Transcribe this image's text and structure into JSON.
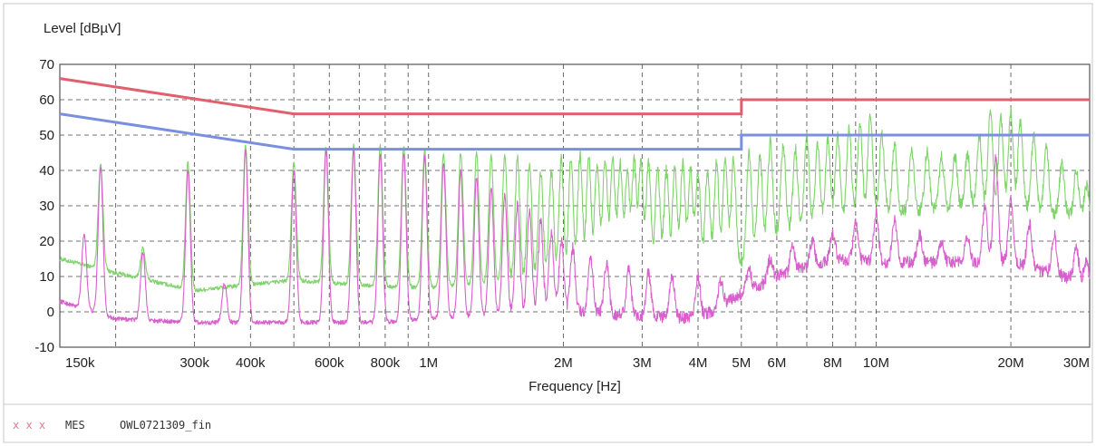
{
  "chart_data": {
    "type": "line",
    "title": "",
    "ylabel": "Level [dBµV]",
    "xlabel": "Frequency [Hz]",
    "x_scale": "log",
    "xlim": [
      150000,
      30000000
    ],
    "ylim": [
      -10,
      70
    ],
    "y_ticks": [
      -10,
      0,
      10,
      20,
      30,
      40,
      50,
      60,
      70
    ],
    "x_ticks": [
      {
        "value": 150000,
        "label": "150k"
      },
      {
        "value": 300000,
        "label": "300k"
      },
      {
        "value": 400000,
        "label": "400k"
      },
      {
        "value": 600000,
        "label": "600k"
      },
      {
        "value": 800000,
        "label": "800k"
      },
      {
        "value": 1000000,
        "label": "1M"
      },
      {
        "value": 2000000,
        "label": "2M"
      },
      {
        "value": 3000000,
        "label": "3M"
      },
      {
        "value": 4000000,
        "label": "4M"
      },
      {
        "value": 5000000,
        "label": "5M"
      },
      {
        "value": 6000000,
        "label": "6M"
      },
      {
        "value": 8000000,
        "label": "8M"
      },
      {
        "value": 10000000,
        "label": "10M"
      },
      {
        "value": 20000000,
        "label": "20M"
      },
      {
        "value": 30000000,
        "label": "30M"
      }
    ],
    "x_gridlines": [
      150000,
      200000,
      300000,
      400000,
      500000,
      600000,
      700000,
      800000,
      900000,
      1000000,
      2000000,
      3000000,
      4000000,
      5000000,
      6000000,
      7000000,
      8000000,
      9000000,
      10000000,
      20000000,
      30000000
    ],
    "grid": true,
    "limit_lines": [
      {
        "color": "#e0606e",
        "points": [
          [
            150000,
            66
          ],
          [
            500000,
            56
          ],
          [
            5000000,
            56
          ],
          [
            5000000,
            60
          ],
          [
            30000000,
            60
          ]
        ]
      },
      {
        "color": "#7b8fe0",
        "points": [
          [
            150000,
            56
          ],
          [
            500000,
            46
          ],
          [
            5000000,
            46
          ],
          [
            5000000,
            50
          ],
          [
            30000000,
            50
          ]
        ]
      }
    ],
    "series": [
      {
        "color": "#7fd36b",
        "baseline": [
          [
            150000,
            15
          ],
          [
            200000,
            11
          ],
          [
            300000,
            6
          ],
          [
            500000,
            9
          ],
          [
            800000,
            7
          ],
          [
            1000000,
            7
          ],
          [
            2000000,
            9
          ],
          [
            3000000,
            12
          ],
          [
            4000000,
            12
          ],
          [
            5000000,
            14
          ],
          [
            6000000,
            22
          ],
          [
            8000000,
            25
          ],
          [
            10000000,
            28
          ],
          [
            20000000,
            30
          ],
          [
            30000000,
            26
          ]
        ],
        "peaks": [
          [
            185000,
            42
          ],
          [
            230000,
            18
          ],
          [
            290000,
            42
          ],
          [
            390000,
            47
          ],
          [
            500000,
            42
          ],
          [
            590000,
            47
          ],
          [
            680000,
            47
          ],
          [
            780000,
            47
          ],
          [
            880000,
            47
          ],
          [
            980000,
            46
          ],
          [
            1080000,
            45
          ],
          [
            1180000,
            45
          ],
          [
            1280000,
            45
          ],
          [
            1380000,
            44
          ],
          [
            1480000,
            44
          ],
          [
            1580000,
            43
          ],
          [
            1680000,
            42
          ],
          [
            1780000,
            40
          ],
          [
            1880000,
            40
          ],
          [
            1980000,
            43
          ],
          [
            2080000,
            44
          ],
          [
            2180000,
            44
          ],
          [
            2280000,
            44
          ],
          [
            2380000,
            42
          ],
          [
            2480000,
            44
          ],
          [
            2580000,
            43
          ],
          [
            2680000,
            42
          ],
          [
            2780000,
            40
          ],
          [
            2880000,
            43
          ],
          [
            2980000,
            42
          ],
          [
            3100000,
            42
          ],
          [
            3250000,
            41
          ],
          [
            3400000,
            40
          ],
          [
            3550000,
            40
          ],
          [
            3700000,
            42
          ],
          [
            3850000,
            41
          ],
          [
            4000000,
            40
          ],
          [
            4200000,
            40
          ],
          [
            4400000,
            42
          ],
          [
            4600000,
            42
          ],
          [
            4800000,
            43
          ],
          [
            5200000,
            45
          ],
          [
            5500000,
            44
          ],
          [
            5800000,
            48
          ],
          [
            6200000,
            47
          ],
          [
            6600000,
            46
          ],
          [
            7000000,
            50
          ],
          [
            7400000,
            47
          ],
          [
            7800000,
            49
          ],
          [
            8200000,
            50
          ],
          [
            8700000,
            52
          ],
          [
            9200000,
            53
          ],
          [
            9700000,
            55
          ],
          [
            10300000,
            50
          ],
          [
            11000000,
            48
          ],
          [
            12000000,
            46
          ],
          [
            13000000,
            45
          ],
          [
            14000000,
            44
          ],
          [
            15000000,
            44
          ],
          [
            16000000,
            45
          ],
          [
            17000000,
            50
          ],
          [
            18000000,
            57
          ],
          [
            19000000,
            55
          ],
          [
            20000000,
            56
          ],
          [
            21000000,
            54
          ],
          [
            22500000,
            50
          ],
          [
            24000000,
            46
          ],
          [
            26000000,
            42
          ],
          [
            28000000,
            40
          ],
          [
            29500000,
            36
          ]
        ]
      },
      {
        "color": "#d860cc",
        "baseline": [
          [
            150000,
            3
          ],
          [
            200000,
            -2
          ],
          [
            300000,
            -3
          ],
          [
            500000,
            -3
          ],
          [
            800000,
            -3
          ],
          [
            1000000,
            -2
          ],
          [
            2000000,
            0
          ],
          [
            3000000,
            -1
          ],
          [
            4000000,
            -2
          ],
          [
            5000000,
            5
          ],
          [
            6000000,
            10
          ],
          [
            8000000,
            15
          ],
          [
            10000000,
            14
          ],
          [
            20000000,
            14
          ],
          [
            30000000,
            8
          ]
        ],
        "peaks": [
          [
            170000,
            22
          ],
          [
            185000,
            41
          ],
          [
            230000,
            17
          ],
          [
            290000,
            40
          ],
          [
            350000,
            8
          ],
          [
            390000,
            46
          ],
          [
            500000,
            40
          ],
          [
            590000,
            46
          ],
          [
            680000,
            46
          ],
          [
            780000,
            45
          ],
          [
            880000,
            45
          ],
          [
            980000,
            44
          ],
          [
            1080000,
            42
          ],
          [
            1180000,
            40
          ],
          [
            1280000,
            38
          ],
          [
            1380000,
            35
          ],
          [
            1480000,
            33
          ],
          [
            1580000,
            30
          ],
          [
            1680000,
            28
          ],
          [
            1780000,
            26
          ],
          [
            1880000,
            22
          ],
          [
            1980000,
            20
          ],
          [
            2100000,
            18
          ],
          [
            2300000,
            16
          ],
          [
            2500000,
            14
          ],
          [
            2800000,
            12
          ],
          [
            3100000,
            11
          ],
          [
            3500000,
            10
          ],
          [
            4000000,
            10
          ],
          [
            4500000,
            9
          ],
          [
            5200000,
            12
          ],
          [
            5800000,
            15
          ],
          [
            6500000,
            18
          ],
          [
            7200000,
            20
          ],
          [
            8000000,
            22
          ],
          [
            9000000,
            25
          ],
          [
            10000000,
            28
          ],
          [
            11000000,
            26
          ],
          [
            12500000,
            22
          ],
          [
            14000000,
            20
          ],
          [
            16000000,
            22
          ],
          [
            17500000,
            30
          ],
          [
            18500000,
            44
          ],
          [
            20000000,
            32
          ],
          [
            22000000,
            25
          ],
          [
            25000000,
            22
          ],
          [
            28000000,
            18
          ],
          [
            29500000,
            14
          ]
        ]
      }
    ],
    "legend": [
      {
        "marker": "x x x",
        "label": "MES",
        "value": "OWL0721309_fin"
      }
    ]
  }
}
